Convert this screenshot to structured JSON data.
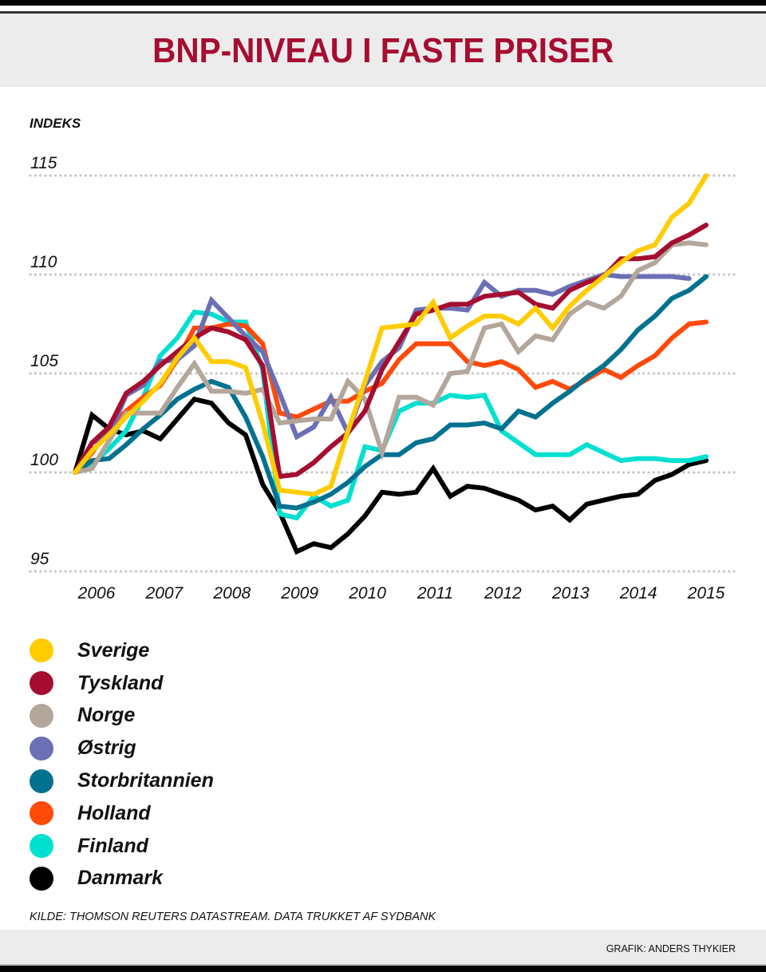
{
  "header": {
    "title": "BNP-NIVEAU I FASTE PRISER"
  },
  "footer": {
    "source": "KILDE: THOMSON REUTERS DATASTREAM. DATA TRUKKET AF SYDBANK",
    "credit": "GRAFIK: ANDERS THYKIER"
  },
  "chart_data": {
    "type": "line",
    "title": "BNP-NIVEAU I FASTE PRISER",
    "ylabel": "INDEKS",
    "xlabel": "",
    "ylim": [
      95,
      115
    ],
    "yticks": [
      95,
      100,
      105,
      110,
      115
    ],
    "ytick_labels": [
      "95",
      "100",
      "105",
      "110",
      "115"
    ],
    "xtick_labels": [
      "2006",
      "2007",
      "2008",
      "2009",
      "2010",
      "2011",
      "2012",
      "2013",
      "2014",
      "2015"
    ],
    "x_start": "2006 Q1",
    "x_frequency": "quarterly",
    "grid": "horizontal dotted",
    "legend_position": "bottom-left",
    "series": [
      {
        "name": "Sverige",
        "color": "#ffcc00",
        "values": [
          100.0,
          101.1,
          101.9,
          102.8,
          103.6,
          104.5,
          105.8,
          106.8,
          105.6,
          105.6,
          105.3,
          102.5,
          99.1,
          99.0,
          98.9,
          99.3,
          102.1,
          104.6,
          107.3,
          107.4,
          107.5,
          108.6,
          106.8,
          107.4,
          107.9,
          107.9,
          107.5,
          108.3,
          107.3,
          108.4,
          109.2,
          109.9,
          110.6,
          111.2,
          111.5,
          112.9,
          113.6,
          115.0
        ]
      },
      {
        "name": "Tyskland",
        "color": "#a50d31",
        "values": [
          100.0,
          101.5,
          102.3,
          104.0,
          104.6,
          105.4,
          106.1,
          106.8,
          107.3,
          107.1,
          106.7,
          105.4,
          99.8,
          99.9,
          100.5,
          101.3,
          102.0,
          103.1,
          105.2,
          106.6,
          108.0,
          108.2,
          108.5,
          108.5,
          108.9,
          109.0,
          109.1,
          108.5,
          108.3,
          109.2,
          109.6,
          109.9,
          110.8,
          110.8,
          110.9,
          111.6,
          112.0,
          112.5
        ]
      },
      {
        "name": "Norge",
        "color": "#b3a69a",
        "values": [
          100.0,
          100.2,
          101.6,
          103.0,
          103.0,
          103.0,
          104.3,
          105.5,
          104.1,
          104.1,
          104.0,
          104.2,
          102.5,
          102.6,
          102.7,
          102.7,
          104.6,
          103.7,
          101.0,
          103.8,
          103.8,
          103.4,
          105.0,
          105.1,
          107.3,
          107.5,
          106.1,
          106.9,
          106.7,
          108.0,
          108.6,
          108.3,
          108.9,
          110.2,
          110.6,
          111.5,
          111.6,
          111.5
        ]
      },
      {
        "name": "Østrig",
        "color": "#6b70b5",
        "values": [
          100.0,
          101.5,
          101.9,
          103.9,
          104.4,
          105.6,
          105.7,
          106.4,
          108.7,
          107.8,
          106.9,
          106.1,
          104.0,
          101.8,
          102.3,
          103.8,
          102.0,
          104.4,
          105.6,
          106.3,
          108.2,
          108.3,
          108.3,
          108.2,
          109.6,
          108.9,
          109.2,
          109.2,
          109.0,
          109.4,
          109.7,
          110.0,
          109.9,
          109.9,
          109.9,
          109.9,
          109.8
        ]
      },
      {
        "name": "Storbritannien",
        "color": "#00728f",
        "values": [
          100.0,
          100.6,
          100.7,
          101.4,
          102.2,
          102.9,
          103.7,
          104.2,
          104.6,
          104.3,
          102.8,
          100.8,
          98.3,
          98.2,
          98.5,
          98.9,
          99.5,
          100.3,
          100.9,
          100.9,
          101.5,
          101.7,
          102.4,
          102.4,
          102.5,
          102.2,
          103.1,
          102.8,
          103.5,
          104.1,
          104.8,
          105.4,
          106.2,
          107.2,
          107.9,
          108.8,
          109.2,
          109.9
        ]
      },
      {
        "name": "Holland",
        "color": "#ff4a0a",
        "values": [
          100.0,
          101.0,
          102.2,
          103.1,
          103.8,
          104.4,
          105.7,
          107.3,
          107.3,
          107.5,
          107.4,
          106.5,
          103.0,
          102.8,
          103.2,
          103.6,
          103.6,
          104.1,
          104.5,
          105.7,
          106.5,
          106.5,
          106.5,
          105.6,
          105.4,
          105.6,
          105.2,
          104.3,
          104.6,
          104.2,
          104.7,
          105.2,
          104.8,
          105.4,
          105.9,
          106.8,
          107.5,
          107.6
        ]
      },
      {
        "name": "Finland",
        "color": "#00e0d0",
        "values": [
          100.0,
          100.4,
          101.2,
          102.1,
          103.8,
          105.9,
          106.8,
          108.1,
          108.0,
          107.6,
          107.6,
          105.2,
          97.9,
          97.7,
          98.8,
          98.3,
          98.6,
          101.3,
          101.1,
          103.1,
          103.5,
          103.5,
          103.9,
          103.8,
          103.9,
          102.1,
          101.5,
          100.9,
          100.9,
          100.9,
          101.4,
          101.0,
          100.6,
          100.7,
          100.7,
          100.6,
          100.6,
          100.8
        ]
      },
      {
        "name": "Danmark",
        "color": "#000000",
        "values": [
          100.0,
          102.9,
          102.2,
          101.9,
          102.1,
          101.7,
          102.7,
          103.7,
          103.5,
          102.5,
          101.9,
          99.4,
          98.0,
          96.0,
          96.4,
          96.2,
          96.9,
          97.8,
          99.0,
          98.9,
          99.0,
          100.2,
          98.8,
          99.3,
          99.2,
          98.9,
          98.6,
          98.1,
          98.3,
          97.6,
          98.4,
          98.6,
          98.8,
          98.9,
          99.6,
          99.9,
          100.4,
          100.6
        ]
      }
    ]
  }
}
